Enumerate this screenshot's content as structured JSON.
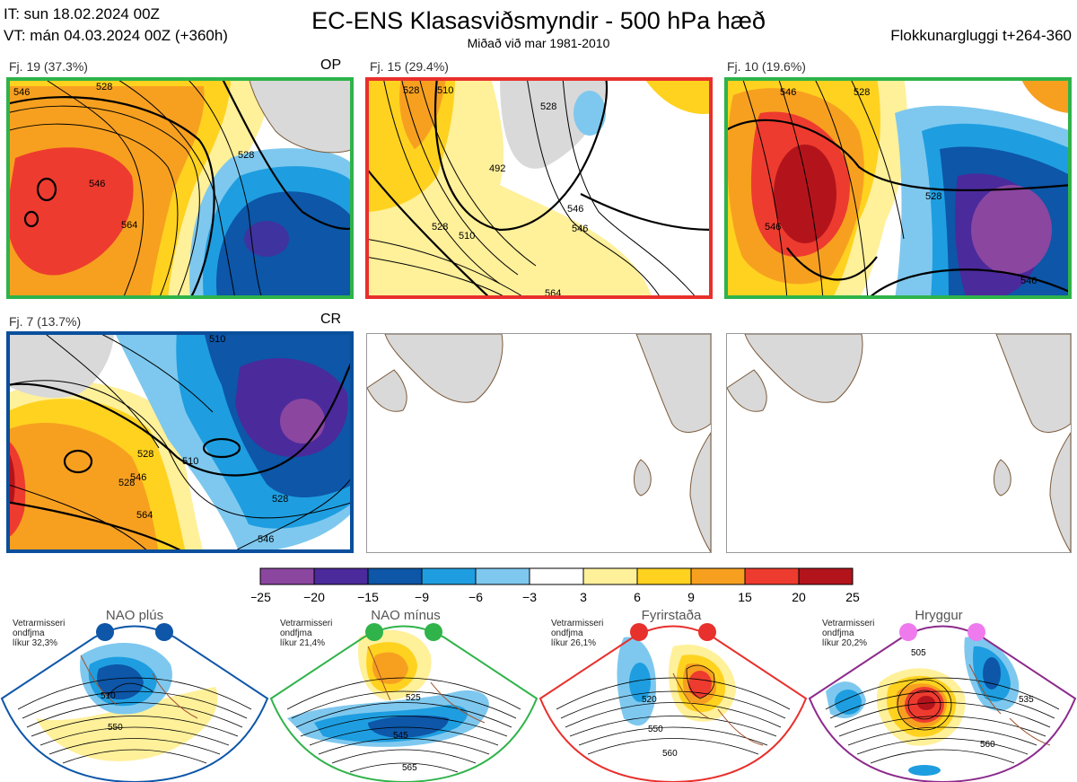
{
  "header": {
    "it_line": "IT: sun 18.02.2024 00Z",
    "vt_line": "VT: mán 04.03.2024 00Z  (+360h)",
    "title": "EC-ENS Klasasviðsmyndir - 500 hPa hæð",
    "subtitle": "Miðað við mar 1981-2010",
    "window": "Flokkunargluggi t+264-360"
  },
  "panels": [
    {
      "label": "Fj. 19 (37.3%)",
      "tag": "OP",
      "border": "#2fb34a",
      "contours": [
        "546",
        "528",
        "564",
        "546",
        "528"
      ]
    },
    {
      "label": "Fj. 15 (29.4%)",
      "tag": "",
      "border": "#e8302c",
      "contours": [
        "528",
        "510",
        "492",
        "510",
        "528",
        "546",
        "528",
        "546",
        "564"
      ]
    },
    {
      "label": "Fj. 10 (19.6%)",
      "tag": "",
      "border": "#2fb34a",
      "contours": [
        "546",
        "528",
        "546",
        "528",
        "546"
      ]
    },
    {
      "label": "Fj. 7 (13.7%)",
      "tag": "CR",
      "border": "#0a4f9c",
      "contours": [
        "528",
        "510",
        "528",
        "546",
        "564",
        "546",
        "528",
        "510"
      ]
    }
  ],
  "colorbar": {
    "ticks": [
      "−25",
      "−20",
      "−15",
      "−9",
      "−6",
      "−3",
      "3",
      "6",
      "9",
      "15",
      "20",
      "25"
    ],
    "colors": [
      "#8b46a0",
      "#4b2a9c",
      "#0d56a8",
      "#1e9ee0",
      "#7ec8ef",
      "#ffffff",
      "#fff09a",
      "#ffd21f",
      "#f7a020",
      "#ee3b2f",
      "#b3141b"
    ]
  },
  "regimes": [
    {
      "name": "NAO plús",
      "note": "Vetrarmisseri\nondfjma\nlíkur 32,3%",
      "dot": "#0d56a8",
      "border": "#0d56a8",
      "contours": [
        "510",
        "550"
      ]
    },
    {
      "name": "NAO mínus",
      "note": "Vetrarmisseri\nondfjma\nlíkur 21,4%",
      "dot": "#2fb34a",
      "border": "#2fb34a",
      "contours": [
        "525",
        "545",
        "565"
      ]
    },
    {
      "name": "Fyrirstaða",
      "note": "Vetrarmisseri\nondfjma\nlíkur 26,1%",
      "dot": "#e8302c",
      "border": "#e8302c",
      "contours": [
        "520",
        "550",
        "560"
      ]
    },
    {
      "name": "Hryggur",
      "note": "Vetrarmisseri\nondfjma\nlíkur 20,2%",
      "dot": "#ee7aee",
      "border": "#8c2a8c",
      "contours": [
        "505",
        "535",
        "560"
      ]
    }
  ]
}
